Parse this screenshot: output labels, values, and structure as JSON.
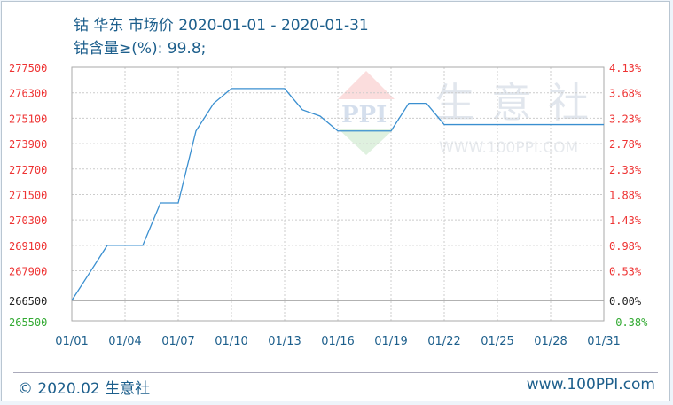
{
  "title": "钴 华东 市场价 2020-01-01 - 2020-01-31",
  "subtitle": "钴含量≥(%): 99.8;",
  "watermark": {
    "logo": "PPI",
    "brand": "生意社",
    "url": "WWW.100PPI.COM"
  },
  "footer": {
    "copyright": "© 2020.02 生意社",
    "site": "www.100PPI.com"
  },
  "colors": {
    "line": "#3a8fd0",
    "up_label": "#ee3333",
    "base_label": "#222222",
    "down_label": "#33aa33",
    "text": "#1d5f8c"
  },
  "chart_data": {
    "type": "line",
    "x": [
      "01/01",
      "01/02",
      "01/03",
      "01/04",
      "01/05",
      "01/06",
      "01/07",
      "01/08",
      "01/09",
      "01/10",
      "01/11",
      "01/12",
      "01/13",
      "01/14",
      "01/15",
      "01/16",
      "01/17",
      "01/18",
      "01/19",
      "01/20",
      "01/21",
      "01/22",
      "01/23",
      "01/24",
      "01/25",
      "01/26",
      "01/27",
      "01/28",
      "01/29",
      "01/30",
      "01/31"
    ],
    "values": [
      266500,
      267800,
      269100,
      269100,
      269100,
      271100,
      271100,
      274500,
      275800,
      276500,
      276500,
      276500,
      276500,
      275500,
      275200,
      274500,
      274500,
      274500,
      274500,
      275800,
      275800,
      274800,
      274800,
      274800,
      274800,
      274800,
      274800,
      274800,
      274800,
      274800,
      274800
    ],
    "x_ticks": [
      "01/01",
      "01/04",
      "01/07",
      "01/10",
      "01/13",
      "01/16",
      "01/19",
      "01/22",
      "01/25",
      "01/28",
      "01/31"
    ],
    "y_ticks": [
      277500,
      276300,
      275100,
      273900,
      272700,
      271500,
      270300,
      269100,
      267900,
      266500,
      265500
    ],
    "y_ticks_right": [
      "4.13%",
      "3.68%",
      "3.23%",
      "2.78%",
      "2.33%",
      "1.88%",
      "1.43%",
      "0.98%",
      "0.53%",
      "0.00%",
      "-0.38%"
    ],
    "ylim": [
      265500,
      277500
    ],
    "base_value": 266500,
    "grid": true
  }
}
